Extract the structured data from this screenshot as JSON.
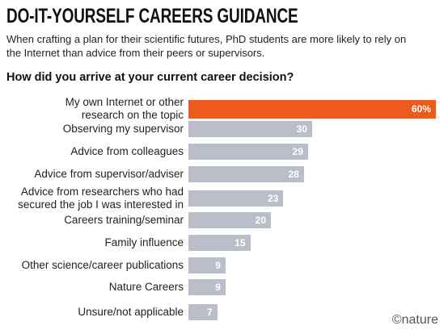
{
  "chart_data": {
    "type": "bar",
    "orientation": "horizontal",
    "title": "DO-IT-YOURSELF CAREERS GUIDANCE",
    "subtitle": "When crafting a plan for their scientific futures, PhD students are more likely to rely on the Internet than advice from their peers or supervisors.",
    "question": "How did you arrive at your current career decision?",
    "categories": [
      "My own Internet or other\nresearch on the topic",
      "Observing my supervisor",
      "Advice from colleagues",
      "Advice from supervisor/adviser",
      "Advice from researchers who had\nsecured the job I was interested in",
      "Careers training/seminar",
      "Family influence",
      "Other science/career publications",
      "Nature Careers",
      "Unsure/not applicable"
    ],
    "values": [
      60,
      30,
      29,
      28,
      23,
      20,
      15,
      9,
      9,
      7
    ],
    "data_labels": [
      "60%",
      "30",
      "29",
      "28",
      "23",
      "20",
      "15",
      "9",
      "9",
      "7"
    ],
    "unit": "%",
    "xlim": [
      0,
      60
    ],
    "grid": false,
    "highlight_index": 0,
    "highlight_color": "#ec5a1e",
    "bar_color": "#b9bec8"
  },
  "logo": "©nature"
}
